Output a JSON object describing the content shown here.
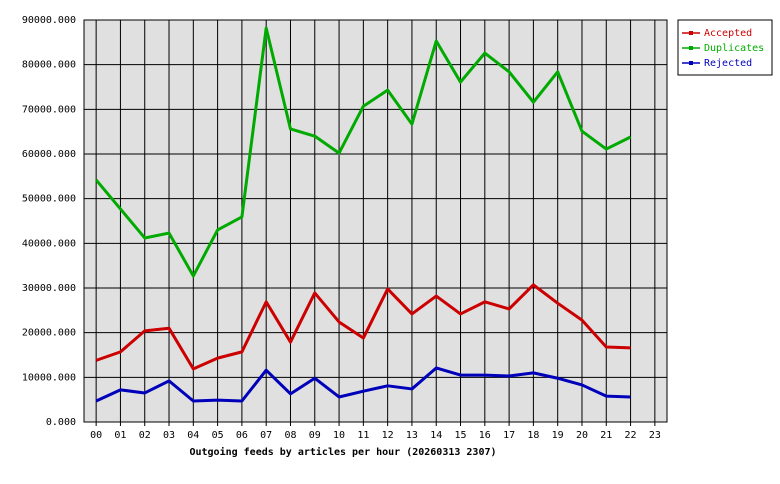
{
  "chart_data": {
    "type": "line",
    "title": "Outgoing feeds by articles per hour (20260313 2307)",
    "categories": [
      "00",
      "01",
      "02",
      "03",
      "04",
      "05",
      "06",
      "07",
      "08",
      "09",
      "10",
      "11",
      "12",
      "13",
      "14",
      "15",
      "16",
      "17",
      "18",
      "19",
      "20",
      "21",
      "22",
      "23"
    ],
    "series": [
      {
        "name": "Accepted",
        "color": "#cc0000",
        "values": [
          13800,
          15700,
          20400,
          21000,
          11900,
          14300,
          15700,
          26900,
          17900,
          28900,
          22400,
          18800,
          29800,
          24200,
          28200,
          24200,
          26900,
          25300,
          30700,
          26600,
          22800,
          16800,
          16600,
          null
        ]
      },
      {
        "name": "Duplicates",
        "color": "#00aa00",
        "values": [
          54200,
          47700,
          41200,
          42300,
          32700,
          43000,
          45900,
          88200,
          65600,
          64000,
          60200,
          70700,
          74300,
          66700,
          85300,
          76100,
          82600,
          78400,
          71600,
          78400,
          65100,
          61100,
          63800,
          null
        ]
      },
      {
        "name": "Rejected",
        "color": "#0000bb",
        "values": [
          4700,
          7200,
          6500,
          9200,
          4700,
          4900,
          4700,
          11600,
          6300,
          9800,
          5600,
          6900,
          8100,
          7400,
          12100,
          10500,
          10500,
          10300,
          11000,
          9800,
          8300,
          5800,
          5600,
          null
        ]
      }
    ],
    "ylim": [
      0,
      90000
    ],
    "yticks": [
      {
        "value": 0,
        "label": "0.000"
      },
      {
        "value": 10000,
        "label": "10000.000"
      },
      {
        "value": 20000,
        "label": "20000.000"
      },
      {
        "value": 30000,
        "label": "30000.000"
      },
      {
        "value": 40000,
        "label": "40000.000"
      },
      {
        "value": 50000,
        "label": "50000.000"
      },
      {
        "value": 60000,
        "label": "60000.000"
      },
      {
        "value": 70000,
        "label": "70000.000"
      },
      {
        "value": 80000,
        "label": "80000.000"
      },
      {
        "value": 90000,
        "label": "90000.000"
      }
    ],
    "grid": true,
    "legend": "top-right"
  }
}
